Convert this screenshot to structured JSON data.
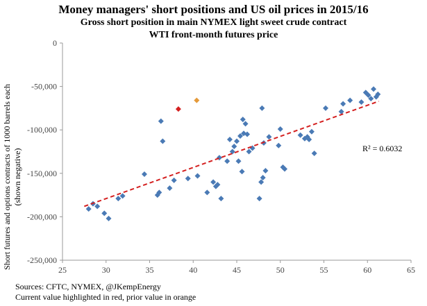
{
  "chart_data": {
    "type": "scatter",
    "title": "Money managers' short positions and US oil prices in 2015/16",
    "subtitle": "Gross short position in main NYMEX light sweet crude contract",
    "xlabel": "WTI front-month futures price",
    "ylabel_line1": "Short futures and options contracts of 1000 barrels each",
    "ylabel_line2": "(shown negative)",
    "xlim": [
      25,
      65
    ],
    "ylim": [
      -250000,
      0
    ],
    "x_ticks": [
      25,
      30,
      35,
      40,
      45,
      50,
      55,
      60,
      65
    ],
    "y_ticks": [
      0,
      -50000,
      -100000,
      -150000,
      -200000,
      -250000
    ],
    "x_tick_labels": [
      "25",
      "30",
      "35",
      "40",
      "45",
      "50",
      "55",
      "60",
      "65"
    ],
    "y_tick_labels": [
      "0",
      "-50,000",
      "-100,000",
      "-150,000",
      "-200,000",
      "-250,000"
    ],
    "grid": false,
    "series_color": "#4a7ab5",
    "current_color": "#d42020",
    "prior_color": "#e59a3a",
    "trendline_color": "#d42020",
    "trendline": {
      "x": [
        27.5,
        61.3
      ],
      "y": [
        -188000,
        -67000
      ]
    },
    "r2_label": "R² = 0.6032",
    "points": [
      {
        "x": 28.0,
        "y": -191000
      },
      {
        "x": 28.5,
        "y": -185000
      },
      {
        "x": 29.0,
        "y": -188000
      },
      {
        "x": 29.8,
        "y": -196000
      },
      {
        "x": 30.3,
        "y": -202000
      },
      {
        "x": 31.4,
        "y": -179000
      },
      {
        "x": 31.9,
        "y": -176000
      },
      {
        "x": 34.4,
        "y": -151000
      },
      {
        "x": 35.9,
        "y": -175000
      },
      {
        "x": 36.1,
        "y": -172000
      },
      {
        "x": 36.3,
        "y": -90000
      },
      {
        "x": 36.5,
        "y": -113000
      },
      {
        "x": 37.3,
        "y": -167000
      },
      {
        "x": 37.8,
        "y": -158000
      },
      {
        "x": 39.4,
        "y": -156000
      },
      {
        "x": 40.5,
        "y": -153000
      },
      {
        "x": 41.6,
        "y": -172000
      },
      {
        "x": 42.3,
        "y": -160000
      },
      {
        "x": 42.6,
        "y": -165000
      },
      {
        "x": 42.8,
        "y": -163000
      },
      {
        "x": 43.0,
        "y": -132000
      },
      {
        "x": 43.2,
        "y": -179000
      },
      {
        "x": 43.9,
        "y": -136000
      },
      {
        "x": 44.2,
        "y": -111000
      },
      {
        "x": 44.5,
        "y": -125000
      },
      {
        "x": 44.7,
        "y": -119000
      },
      {
        "x": 45.0,
        "y": -113000
      },
      {
        "x": 45.2,
        "y": -136000
      },
      {
        "x": 45.4,
        "y": -107000
      },
      {
        "x": 45.6,
        "y": -148000
      },
      {
        "x": 45.7,
        "y": -88000
      },
      {
        "x": 45.8,
        "y": -104000
      },
      {
        "x": 46.0,
        "y": -93000
      },
      {
        "x": 46.2,
        "y": -105000
      },
      {
        "x": 46.4,
        "y": -125000
      },
      {
        "x": 46.8,
        "y": -121000
      },
      {
        "x": 47.6,
        "y": -179000
      },
      {
        "x": 47.8,
        "y": -160000
      },
      {
        "x": 47.9,
        "y": -75000
      },
      {
        "x": 48.0,
        "y": -155000
      },
      {
        "x": 48.1,
        "y": -115000
      },
      {
        "x": 48.3,
        "y": -147000
      },
      {
        "x": 48.7,
        "y": -108000
      },
      {
        "x": 49.8,
        "y": -118000
      },
      {
        "x": 50.0,
        "y": -99000
      },
      {
        "x": 50.3,
        "y": -143000
      },
      {
        "x": 50.5,
        "y": -145000
      },
      {
        "x": 52.3,
        "y": -106000
      },
      {
        "x": 52.8,
        "y": -110000
      },
      {
        "x": 53.1,
        "y": -108000
      },
      {
        "x": 53.3,
        "y": -111000
      },
      {
        "x": 53.6,
        "y": -102000
      },
      {
        "x": 53.9,
        "y": -127000
      },
      {
        "x": 55.2,
        "y": -75000
      },
      {
        "x": 57.0,
        "y": -79000
      },
      {
        "x": 57.2,
        "y": -70000
      },
      {
        "x": 58.0,
        "y": -66000
      },
      {
        "x": 59.3,
        "y": -68000
      },
      {
        "x": 59.8,
        "y": -57000
      },
      {
        "x": 60.1,
        "y": -60000
      },
      {
        "x": 60.4,
        "y": -64000
      },
      {
        "x": 60.7,
        "y": -53000
      },
      {
        "x": 61.0,
        "y": -62000
      },
      {
        "x": 61.2,
        "y": -59000
      }
    ],
    "current_point": {
      "x": 38.3,
      "y": -76000
    },
    "prior_point": {
      "x": 40.4,
      "y": -66000
    }
  },
  "sources_line1": "Sources: CFTC, NYMEX, @JKempEnergy",
  "sources_line2": "Current value highlighted in red, prior value in orange"
}
